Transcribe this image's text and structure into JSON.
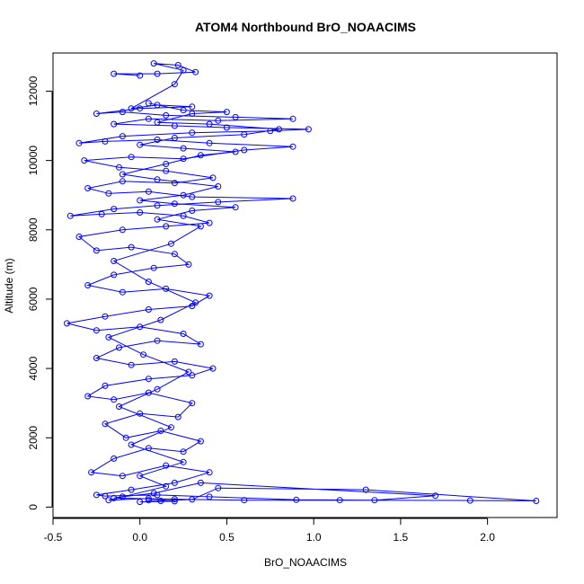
{
  "chart_data": {
    "type": "scatter",
    "title": "ATOM4 Northbound BrO_NOAACIMS",
    "xlabel": "BrO_NOAACIMS",
    "ylabel": "Altitude (m)",
    "xlim": [
      -0.5,
      2.4
    ],
    "ylim": [
      -300,
      13100
    ],
    "x_ticks": [
      -0.5,
      0.0,
      0.5,
      1.0,
      1.5,
      2.0
    ],
    "x_tick_labels": [
      "-0.5",
      "0.0",
      "0.5",
      "1.0",
      "1.5",
      "2.0"
    ],
    "y_ticks": [
      0,
      2000,
      4000,
      6000,
      8000,
      10000,
      12000
    ],
    "y_tick_labels": [
      "0",
      "2000",
      "4000",
      "6000",
      "8000",
      "10000",
      "12000"
    ],
    "grid": false,
    "legend": "none",
    "series_color": "#0000ff",
    "marker": "open-circle",
    "connect_points": true,
    "series": [
      {
        "points": [
          [
            0.05,
            200
          ],
          [
            0.12,
            180
          ],
          [
            0.3,
            220
          ],
          [
            0.45,
            550
          ],
          [
            1.3,
            500
          ],
          [
            2.28,
            180
          ],
          [
            1.9,
            190
          ],
          [
            1.15,
            200
          ],
          [
            0.6,
            200
          ],
          [
            0.2,
            230
          ],
          [
            -0.15,
            260
          ],
          [
            -0.1,
            300
          ],
          [
            0.08,
            400
          ],
          [
            0.35,
            700
          ],
          [
            1.7,
            330
          ],
          [
            1.35,
            200
          ],
          [
            0.9,
            210
          ],
          [
            0.4,
            300
          ],
          [
            0.1,
            350
          ],
          [
            -0.2,
            320
          ],
          [
            -0.25,
            350
          ],
          [
            -0.05,
            500
          ],
          [
            0.2,
            700
          ],
          [
            0.4,
            1000
          ],
          [
            0.15,
            1200
          ],
          [
            -0.1,
            900
          ],
          [
            -0.28,
            1000
          ],
          [
            -0.15,
            1400
          ],
          [
            0.05,
            1700
          ],
          [
            0.25,
            1600
          ],
          [
            0.35,
            1900
          ],
          [
            0.12,
            2200
          ],
          [
            -0.08,
            2000
          ],
          [
            -0.2,
            2400
          ],
          [
            0.0,
            2700
          ],
          [
            0.22,
            2600
          ],
          [
            0.3,
            3000
          ],
          [
            0.05,
            3300
          ],
          [
            -0.15,
            3100
          ],
          [
            -0.3,
            3200
          ],
          [
            -0.2,
            3500
          ],
          [
            0.05,
            3700
          ],
          [
            0.3,
            3800
          ],
          [
            0.42,
            4000
          ],
          [
            0.2,
            4200
          ],
          [
            -0.05,
            4100
          ],
          [
            -0.25,
            4300
          ],
          [
            -0.12,
            4600
          ],
          [
            0.1,
            4800
          ],
          [
            0.35,
            4700
          ],
          [
            0.25,
            5000
          ],
          [
            0.0,
            5200
          ],
          [
            -0.25,
            5100
          ],
          [
            -0.42,
            5300
          ],
          [
            -0.2,
            5500
          ],
          [
            0.05,
            5700
          ],
          [
            0.3,
            5800
          ],
          [
            0.4,
            6100
          ],
          [
            0.15,
            6300
          ],
          [
            -0.1,
            6200
          ],
          [
            -0.3,
            6400
          ],
          [
            -0.15,
            6700
          ],
          [
            0.08,
            6900
          ],
          [
            0.28,
            7000
          ],
          [
            0.2,
            7300
          ],
          [
            -0.05,
            7500
          ],
          [
            -0.25,
            7400
          ],
          [
            -0.35,
            7800
          ],
          [
            -0.1,
            8000
          ],
          [
            0.15,
            8100
          ],
          [
            0.4,
            8200
          ],
          [
            0.25,
            8400
          ],
          [
            0.0,
            8500
          ],
          [
            -0.22,
            8450
          ],
          [
            -0.4,
            8400
          ],
          [
            -0.15,
            8600
          ],
          [
            0.1,
            8700
          ],
          [
            0.45,
            8800
          ],
          [
            0.88,
            8900
          ],
          [
            0.3,
            8950
          ],
          [
            0.05,
            9100
          ],
          [
            -0.18,
            9050
          ],
          [
            -0.3,
            9200
          ],
          [
            -0.1,
            9400
          ],
          [
            0.2,
            9350
          ],
          [
            0.42,
            9500
          ],
          [
            0.15,
            9700
          ],
          [
            -0.12,
            9800
          ],
          [
            -0.32,
            10000
          ],
          [
            -0.05,
            10100
          ],
          [
            0.25,
            10050
          ],
          [
            0.6,
            10300
          ],
          [
            0.88,
            10400
          ],
          [
            0.4,
            10500
          ],
          [
            0.1,
            10600
          ],
          [
            -0.2,
            10550
          ],
          [
            -0.35,
            10500
          ],
          [
            -0.1,
            10700
          ],
          [
            0.3,
            10800
          ],
          [
            0.75,
            10850
          ],
          [
            0.97,
            10900
          ],
          [
            0.5,
            10950
          ],
          [
            0.2,
            11000
          ],
          [
            -0.15,
            11050
          ],
          [
            0.05,
            11200
          ],
          [
            0.45,
            11150
          ],
          [
            0.88,
            11200
          ],
          [
            0.55,
            11250
          ],
          [
            0.15,
            11300
          ],
          [
            -0.1,
            11400
          ],
          [
            -0.25,
            11350
          ],
          [
            0.0,
            11500
          ],
          [
            0.3,
            11550
          ],
          [
            0.1,
            11600
          ],
          [
            -0.05,
            11500
          ],
          [
            0.2,
            12200
          ],
          [
            0.25,
            12600
          ],
          [
            0.08,
            12800
          ],
          [
            0.22,
            12750
          ],
          [
            0.32,
            12550
          ],
          [
            0.1,
            12500
          ],
          [
            -0.15,
            12500
          ],
          [
            0.0,
            12450
          ]
        ]
      },
      {
        "points": [
          [
            0.0,
            150
          ],
          [
            0.2,
            170
          ],
          [
            0.05,
            250
          ],
          [
            -0.18,
            200
          ],
          [
            0.15,
            600
          ],
          [
            0.0,
            900
          ],
          [
            0.25,
            1300
          ],
          [
            -0.05,
            1800
          ],
          [
            0.18,
            2300
          ],
          [
            -0.12,
            2900
          ],
          [
            0.1,
            3400
          ],
          [
            0.28,
            3900
          ],
          [
            0.02,
            4400
          ],
          [
            -0.18,
            4900
          ],
          [
            0.12,
            5400
          ],
          [
            0.32,
            5900
          ],
          [
            0.05,
            6500
          ],
          [
            -0.15,
            7100
          ],
          [
            0.18,
            7600
          ],
          [
            0.35,
            8100
          ],
          [
            0.1,
            8300
          ],
          [
            0.3,
            8550
          ],
          [
            0.55,
            8650
          ],
          [
            0.2,
            8750
          ],
          [
            0.0,
            8850
          ],
          [
            0.25,
            9000
          ],
          [
            0.45,
            9250
          ],
          [
            0.1,
            9450
          ],
          [
            -0.1,
            9600
          ],
          [
            0.15,
            9900
          ],
          [
            0.35,
            10150
          ],
          [
            0.55,
            10250
          ],
          [
            0.25,
            10350
          ],
          [
            0.0,
            10450
          ],
          [
            0.2,
            10650
          ],
          [
            0.6,
            10750
          ],
          [
            0.8,
            10900
          ],
          [
            0.4,
            11050
          ],
          [
            0.1,
            11100
          ],
          [
            0.3,
            11350
          ],
          [
            0.5,
            11400
          ],
          [
            0.25,
            11450
          ],
          [
            0.05,
            11650
          ]
        ]
      }
    ]
  }
}
